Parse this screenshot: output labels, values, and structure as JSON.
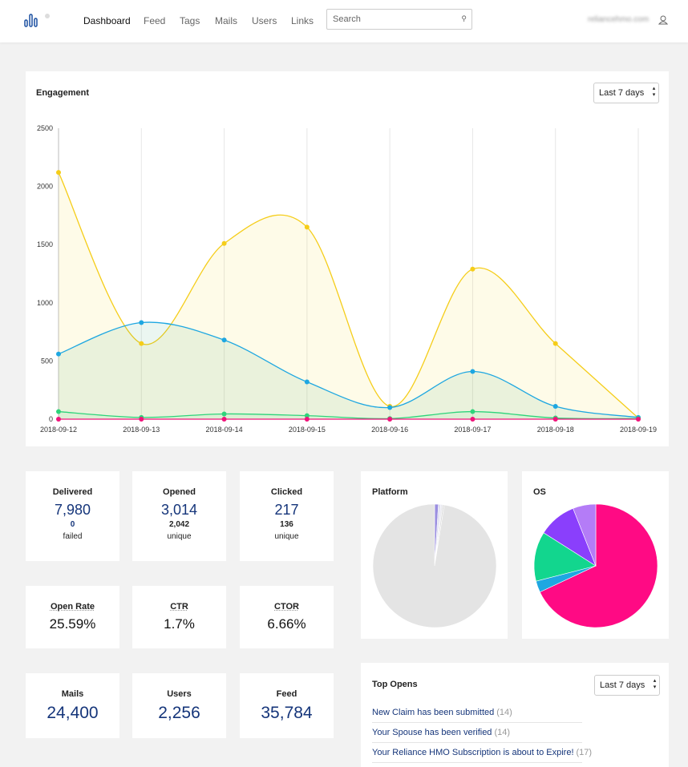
{
  "nav": {
    "items": [
      "Dashboard",
      "Feed",
      "Tags",
      "Mails",
      "Users",
      "Links"
    ],
    "search_placeholder": "Search",
    "user": "reliancehmo.com"
  },
  "engagement": {
    "title": "Engagement",
    "range": "Last 7 days",
    "chart_data": {
      "type": "line",
      "x": [
        "2018-09-12",
        "2018-09-13",
        "2018-09-14",
        "2018-09-15",
        "2018-09-16",
        "2018-09-17",
        "2018-09-18",
        "2018-09-19"
      ],
      "series": [
        {
          "color": "#f5cd19",
          "values": [
            2120,
            650,
            1510,
            1650,
            110,
            1290,
            650,
            10
          ]
        },
        {
          "color": "#1ea7e1",
          "values": [
            560,
            830,
            680,
            320,
            100,
            410,
            110,
            15
          ]
        },
        {
          "color": "#2ed47a",
          "values": [
            65,
            15,
            45,
            30,
            5,
            65,
            10,
            5
          ]
        },
        {
          "color": "#f0137a",
          "values": [
            0,
            0,
            0,
            0,
            0,
            0,
            0,
            0
          ]
        }
      ],
      "ylim": [
        0,
        2500
      ],
      "yticks": [
        0,
        500,
        1000,
        1500,
        2000,
        2500
      ],
      "grid": true
    }
  },
  "stats": [
    {
      "label": "Delivered",
      "value": "7,980",
      "sub": "0",
      "sub_label": "failed"
    },
    {
      "label": "Opened",
      "value": "3,014",
      "sub": "2,042",
      "sub_label": "unique"
    },
    {
      "label": "Clicked",
      "value": "217",
      "sub": "136",
      "sub_label": "unique"
    }
  ],
  "rates": [
    {
      "label": "Open Rate",
      "value": "25.59%"
    },
    {
      "label": "CTR",
      "value": "1.7%"
    },
    {
      "label": "CTOR",
      "value": "6.66%"
    }
  ],
  "totals": [
    {
      "label": "Mails",
      "value": "24,400"
    },
    {
      "label": "Users",
      "value": "2,256"
    },
    {
      "label": "Feed",
      "value": "35,784"
    }
  ],
  "platform": {
    "title": "Platform",
    "chart_data": {
      "type": "pie",
      "values": [
        1,
        0.6,
        0.5,
        0.4,
        97.5
      ],
      "colors": [
        "#9b8fe0",
        "#dcdcf0",
        "#e8e8ee",
        "#d8d8d8",
        "#e4e4e4"
      ]
    }
  },
  "os": {
    "title": "OS",
    "chart_data": {
      "type": "pie",
      "values": [
        68,
        3,
        13,
        10,
        6
      ],
      "colors": [
        "#ff0a84",
        "#1ea7e1",
        "#12d68e",
        "#8a3ffc",
        "#b47cf7"
      ]
    }
  },
  "top_opens": {
    "title": "Top Opens",
    "range": "Last 7 days",
    "items": [
      {
        "text": "New Claim has been submitted",
        "count": "(14)"
      },
      {
        "text": "Your Spouse has been verified",
        "count": "(14)"
      },
      {
        "text": "Your Reliance HMO Subscription is about to Expire!",
        "count": "(17)"
      }
    ]
  }
}
